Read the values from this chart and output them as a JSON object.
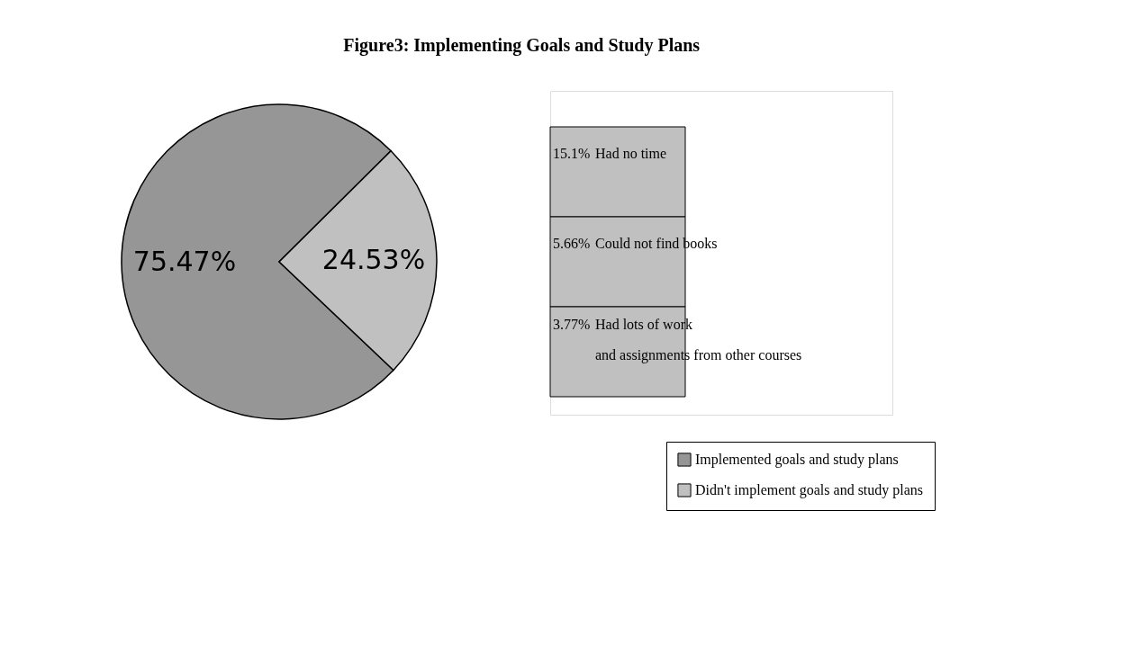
{
  "chart_data": [
    {
      "type": "pie",
      "title": "Figure3: Implementing Goals and Study Plans",
      "categories": [
        "Implemented goals and study plans",
        "Didn't implement goals and study plans"
      ],
      "values": [
        75.47,
        24.53
      ],
      "colors": [
        "#969696",
        "#c0c0c0"
      ],
      "value_labels": [
        "75.47%",
        "24.53%"
      ],
      "legend": "bottom right"
    },
    {
      "type": "other",
      "categories": [
        "Had no time",
        "Could not find books",
        "Had lots of  work\nand assignments from other courses"
      ],
      "values": [
        15.1,
        5.66,
        3.77
      ],
      "value_labels": [
        "15.1%",
        "5.66%",
        "3.77%"
      ],
      "colors": [
        "#c0c0c0",
        "#c0c0c0",
        "#c0c0c0"
      ]
    }
  ]
}
